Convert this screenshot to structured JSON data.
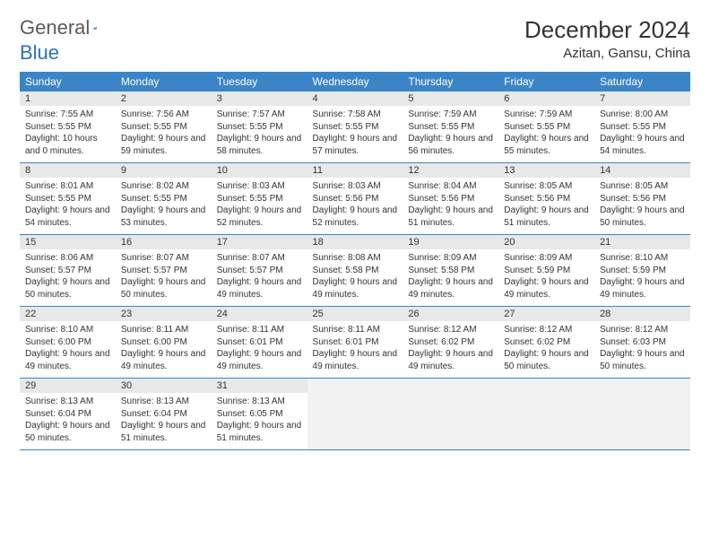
{
  "logo": {
    "text_general": "General",
    "text_blue": "Blue"
  },
  "header": {
    "month_title": "December 2024",
    "location": "Azitan, Gansu, China"
  },
  "colors": {
    "header_bg": "#3b85c6",
    "header_text": "#ffffff",
    "daynum_bg": "#e8e8e8",
    "row_divider": "#3b85c6",
    "body_text": "#333333",
    "logo_gray": "#5a5a5a",
    "logo_blue": "#2d72b5",
    "empty_bg": "#f2f2f2"
  },
  "weekdays": [
    "Sunday",
    "Monday",
    "Tuesday",
    "Wednesday",
    "Thursday",
    "Friday",
    "Saturday"
  ],
  "days": [
    {
      "n": "1",
      "sr": "7:55 AM",
      "ss": "5:55 PM",
      "dl": "10 hours and 0 minutes."
    },
    {
      "n": "2",
      "sr": "7:56 AM",
      "ss": "5:55 PM",
      "dl": "9 hours and 59 minutes."
    },
    {
      "n": "3",
      "sr": "7:57 AM",
      "ss": "5:55 PM",
      "dl": "9 hours and 58 minutes."
    },
    {
      "n": "4",
      "sr": "7:58 AM",
      "ss": "5:55 PM",
      "dl": "9 hours and 57 minutes."
    },
    {
      "n": "5",
      "sr": "7:59 AM",
      "ss": "5:55 PM",
      "dl": "9 hours and 56 minutes."
    },
    {
      "n": "6",
      "sr": "7:59 AM",
      "ss": "5:55 PM",
      "dl": "9 hours and 55 minutes."
    },
    {
      "n": "7",
      "sr": "8:00 AM",
      "ss": "5:55 PM",
      "dl": "9 hours and 54 minutes."
    },
    {
      "n": "8",
      "sr": "8:01 AM",
      "ss": "5:55 PM",
      "dl": "9 hours and 54 minutes."
    },
    {
      "n": "9",
      "sr": "8:02 AM",
      "ss": "5:55 PM",
      "dl": "9 hours and 53 minutes."
    },
    {
      "n": "10",
      "sr": "8:03 AM",
      "ss": "5:55 PM",
      "dl": "9 hours and 52 minutes."
    },
    {
      "n": "11",
      "sr": "8:03 AM",
      "ss": "5:56 PM",
      "dl": "9 hours and 52 minutes."
    },
    {
      "n": "12",
      "sr": "8:04 AM",
      "ss": "5:56 PM",
      "dl": "9 hours and 51 minutes."
    },
    {
      "n": "13",
      "sr": "8:05 AM",
      "ss": "5:56 PM",
      "dl": "9 hours and 51 minutes."
    },
    {
      "n": "14",
      "sr": "8:05 AM",
      "ss": "5:56 PM",
      "dl": "9 hours and 50 minutes."
    },
    {
      "n": "15",
      "sr": "8:06 AM",
      "ss": "5:57 PM",
      "dl": "9 hours and 50 minutes."
    },
    {
      "n": "16",
      "sr": "8:07 AM",
      "ss": "5:57 PM",
      "dl": "9 hours and 50 minutes."
    },
    {
      "n": "17",
      "sr": "8:07 AM",
      "ss": "5:57 PM",
      "dl": "9 hours and 49 minutes."
    },
    {
      "n": "18",
      "sr": "8:08 AM",
      "ss": "5:58 PM",
      "dl": "9 hours and 49 minutes."
    },
    {
      "n": "19",
      "sr": "8:09 AM",
      "ss": "5:58 PM",
      "dl": "9 hours and 49 minutes."
    },
    {
      "n": "20",
      "sr": "8:09 AM",
      "ss": "5:59 PM",
      "dl": "9 hours and 49 minutes."
    },
    {
      "n": "21",
      "sr": "8:10 AM",
      "ss": "5:59 PM",
      "dl": "9 hours and 49 minutes."
    },
    {
      "n": "22",
      "sr": "8:10 AM",
      "ss": "6:00 PM",
      "dl": "9 hours and 49 minutes."
    },
    {
      "n": "23",
      "sr": "8:11 AM",
      "ss": "6:00 PM",
      "dl": "9 hours and 49 minutes."
    },
    {
      "n": "24",
      "sr": "8:11 AM",
      "ss": "6:01 PM",
      "dl": "9 hours and 49 minutes."
    },
    {
      "n": "25",
      "sr": "8:11 AM",
      "ss": "6:01 PM",
      "dl": "9 hours and 49 minutes."
    },
    {
      "n": "26",
      "sr": "8:12 AM",
      "ss": "6:02 PM",
      "dl": "9 hours and 49 minutes."
    },
    {
      "n": "27",
      "sr": "8:12 AM",
      "ss": "6:02 PM",
      "dl": "9 hours and 50 minutes."
    },
    {
      "n": "28",
      "sr": "8:12 AM",
      "ss": "6:03 PM",
      "dl": "9 hours and 50 minutes."
    },
    {
      "n": "29",
      "sr": "8:13 AM",
      "ss": "6:04 PM",
      "dl": "9 hours and 50 minutes."
    },
    {
      "n": "30",
      "sr": "8:13 AM",
      "ss": "6:04 PM",
      "dl": "9 hours and 51 minutes."
    },
    {
      "n": "31",
      "sr": "8:13 AM",
      "ss": "6:05 PM",
      "dl": "9 hours and 51 minutes."
    }
  ],
  "labels": {
    "sunrise_prefix": "Sunrise: ",
    "sunset_prefix": "Sunset: ",
    "daylight_prefix": "Daylight: "
  },
  "layout": {
    "start_weekday_index": 0,
    "total_cells": 35
  }
}
